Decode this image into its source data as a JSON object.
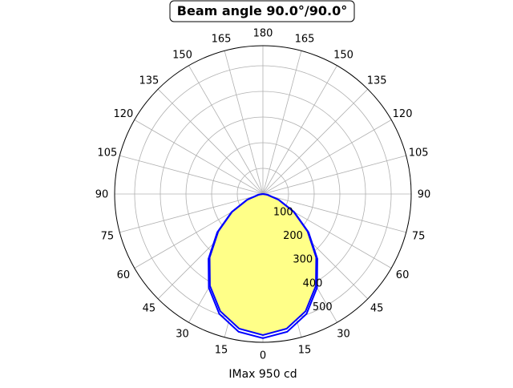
{
  "chart_data": {
    "type": "polar",
    "title": "Beam angle 90.0°/90.0°",
    "xlabel": "IMax 950 cd",
    "angle_ticks": [
      0,
      15,
      30,
      45,
      60,
      75,
      90,
      105,
      120,
      135,
      150,
      165,
      180
    ],
    "radial_ticks": [
      100,
      200,
      300,
      400,
      500
    ],
    "rlim": [
      0,
      578
    ],
    "grid": true,
    "angles_deg": [
      0,
      10,
      20,
      30,
      40,
      50,
      60,
      70,
      80,
      90
    ],
    "series": [
      {
        "values": [
          550,
          533,
          486,
          413,
          323,
          227,
          138,
          64,
          17,
          0
        ],
        "color": "#0000ff",
        "filled": true
      },
      {
        "values": [
          562,
          545,
          497,
          422,
          330,
          232,
          141,
          66,
          17,
          0
        ],
        "color": "#0000ff",
        "filled": false
      }
    ],
    "fill_color": "#ffff88"
  }
}
